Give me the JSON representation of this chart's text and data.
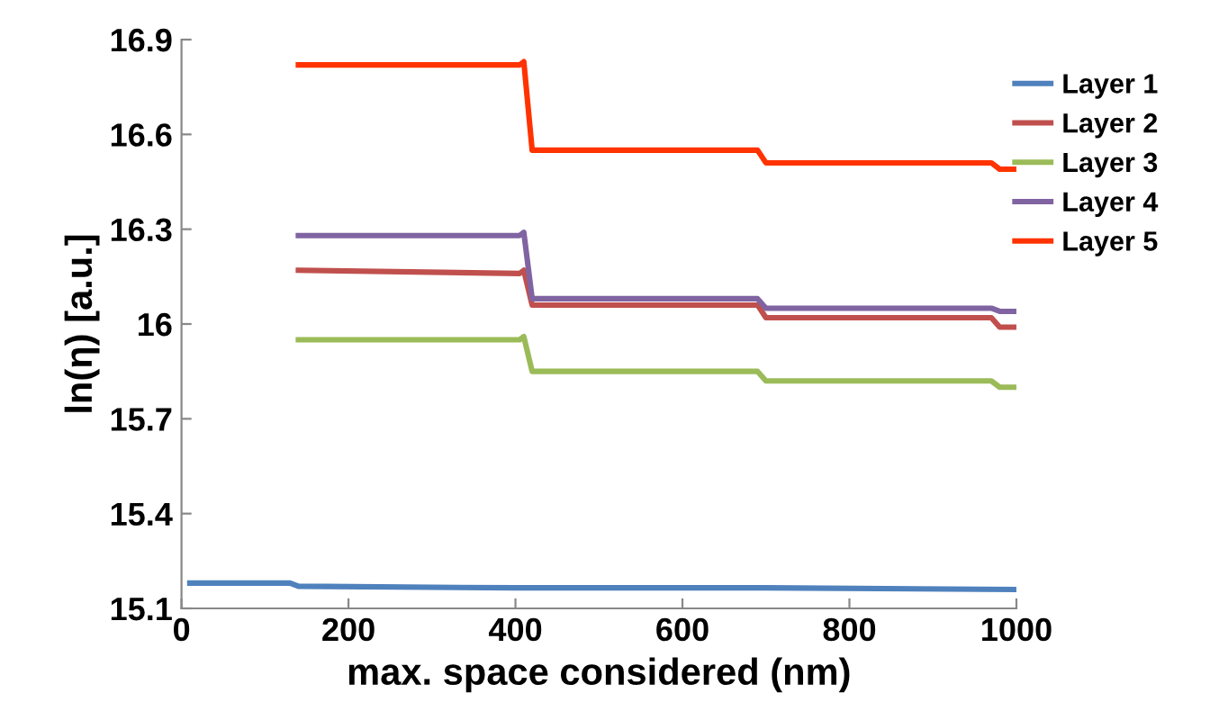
{
  "chart_data": {
    "type": "line",
    "xlabel": "max. space considered (nm)",
    "ylabel": "ln(η) [a.u.]",
    "xlim": [
      0,
      1000
    ],
    "xticks": [
      0,
      200,
      400,
      600,
      800,
      1000
    ],
    "ylim": [
      15.1,
      16.9
    ],
    "yticks": [
      15.1,
      15.4,
      15.7,
      {
        "value": 16.0,
        "label": "16"
      },
      16.3,
      16.6,
      16.9
    ],
    "grid": false,
    "legend": "right",
    "marker": "none",
    "line_style": "solid",
    "series": [
      {
        "name": "Layer 1",
        "color": "#4f81bd",
        "x": [
          10,
          130,
          140,
          400,
          700,
          1000
        ],
        "values": [
          15.18,
          15.18,
          15.17,
          15.165,
          15.165,
          15.16
        ]
      },
      {
        "name": "Layer 2",
        "color": "#c0504d",
        "x": [
          140,
          405,
          410,
          420,
          690,
          700,
          970,
          980,
          1000
        ],
        "values": [
          16.17,
          16.16,
          16.17,
          16.06,
          16.06,
          16.02,
          16.02,
          15.99,
          15.99
        ]
      },
      {
        "name": "Layer 3",
        "color": "#9bbb59",
        "x": [
          140,
          405,
          410,
          420,
          690,
          700,
          970,
          980,
          1000
        ],
        "values": [
          15.95,
          15.95,
          15.96,
          15.85,
          15.85,
          15.82,
          15.82,
          15.8,
          15.8
        ]
      },
      {
        "name": "Layer 4",
        "color": "#8064a2",
        "x": [
          140,
          405,
          410,
          420,
          690,
          700,
          970,
          980,
          1000
        ],
        "values": [
          16.28,
          16.28,
          16.29,
          16.08,
          16.08,
          16.05,
          16.05,
          16.04,
          16.04
        ]
      },
      {
        "name": "Layer 5",
        "color": "#ff3300",
        "x": [
          140,
          405,
          410,
          420,
          690,
          700,
          970,
          980,
          1000
        ],
        "values": [
          16.82,
          16.82,
          16.83,
          16.55,
          16.55,
          16.51,
          16.51,
          16.49,
          16.49
        ]
      }
    ]
  }
}
